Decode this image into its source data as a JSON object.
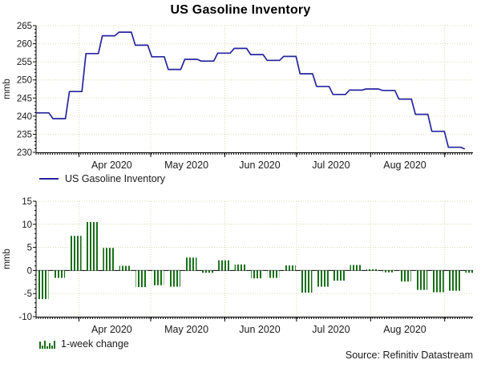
{
  "title": "US Gasoline Inventory",
  "source": "Source: Refinitiv Datastream",
  "colors": {
    "line": "#2626a0",
    "bar": "#177017",
    "grid": "#dcd8ae",
    "axis": "#000000",
    "text": "#1a1a1a"
  },
  "chart_data": [
    {
      "type": "line",
      "title": "US Gasoline Inventory",
      "legend": "US Gasoline Inventory",
      "ylabel": "mmb",
      "ylim": [
        230,
        265
      ],
      "ytick_step": 5,
      "grid": true,
      "legend_position": "bottom-left",
      "x_labels": [
        "Apr 2020",
        "May 2020",
        "Jun 2020",
        "Jul 2020",
        "Aug 2020"
      ],
      "x_unit": "weekly",
      "values": [
        240.9,
        239.3,
        246.8,
        257.3,
        262.2,
        263.2,
        259.6,
        256.4,
        252.9,
        255.7,
        255.2,
        257.4,
        258.7,
        257.0,
        255.4,
        256.5,
        251.7,
        248.2,
        246.0,
        247.2,
        247.5,
        247.1,
        244.7,
        240.5,
        235.8,
        231.4,
        230.9
      ]
    },
    {
      "type": "bar",
      "title": "1-week change",
      "legend": "1-week change",
      "ylabel": "mmb",
      "ylim": [
        -10,
        15
      ],
      "ytick_step": 5,
      "grid": true,
      "legend_position": "bottom-left",
      "x_labels": [
        "Apr 2020",
        "May 2020",
        "Jun 2020",
        "Jul 2020",
        "Aug 2020"
      ],
      "x_unit": "weekly",
      "values": [
        -6.2,
        -1.6,
        7.5,
        10.5,
        4.9,
        1.0,
        -3.6,
        -3.2,
        -3.5,
        2.8,
        -0.5,
        2.2,
        1.3,
        -1.7,
        -1.6,
        1.1,
        -4.8,
        -3.5,
        -2.2,
        1.2,
        0.3,
        -0.4,
        -2.4,
        -4.2,
        -4.7,
        -4.4,
        -0.5
      ]
    }
  ]
}
